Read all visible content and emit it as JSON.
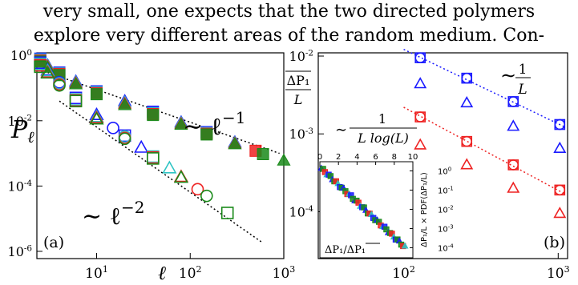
{
  "text": {
    "line1": "very small, one expects that the two directed polymers",
    "line2": "explore very different areas of the random medium. Con-"
  },
  "colors": {
    "blue": "#1a1aff",
    "red": "#ee2222",
    "green": "#1a8a1a",
    "cyan": "#2ec4c4",
    "black": "#000000"
  },
  "chart_data": [
    {
      "type": "scatter",
      "panel_label": "(a)",
      "ylabel": "P_ℓ",
      "xlabel": "ℓ",
      "x_scale": "log",
      "y_scale": "log",
      "xlim": [
        2.3,
        1000
      ],
      "ylim": [
        6e-07,
        1.2
      ],
      "x_ticks": [
        "10^1",
        "10^2",
        "10^3"
      ],
      "y_ticks": [
        "10^0",
        "10^-2",
        "10^-4",
        "10^-6"
      ],
      "annotations": [
        "∼ ℓ^-1",
        "∼ ℓ^-2"
      ],
      "series": [
        {
          "marker": "filled",
          "color": "blue",
          "x": [
            2.5,
            3,
            4,
            6,
            10,
            20,
            40,
            80,
            150,
            300
          ],
          "y": [
            0.8,
            0.5,
            0.3,
            0.16,
            0.08,
            0.04,
            0.019,
            0.009,
            0.0045,
            0.0022
          ]
        },
        {
          "marker": "filled",
          "color": "cyan",
          "x": [
            2.5,
            3,
            4,
            6,
            10,
            20,
            40,
            80,
            150,
            300
          ],
          "y": [
            0.75,
            0.48,
            0.28,
            0.15,
            0.075,
            0.036,
            0.017,
            0.0085,
            0.0042,
            0.0021
          ]
        },
        {
          "marker": "filled",
          "color": "red",
          "x": [
            2.5,
            3,
            4,
            6,
            10,
            20,
            40,
            80,
            150,
            300,
            500
          ],
          "y": [
            0.7,
            0.45,
            0.27,
            0.14,
            0.07,
            0.033,
            0.016,
            0.008,
            0.004,
            0.002,
            0.0012
          ]
        },
        {
          "marker": "filled",
          "color": "green",
          "x": [
            2.5,
            3,
            4,
            6,
            10,
            20,
            40,
            80,
            150,
            300,
            600,
            1000
          ],
          "y": [
            0.65,
            0.42,
            0.25,
            0.13,
            0.065,
            0.03,
            0.015,
            0.0075,
            0.0038,
            0.0019,
            0.00095,
            0.0006
          ]
        },
        {
          "marker": "open",
          "color": "blue",
          "x": [
            2.5,
            3,
            4,
            6,
            10,
            15,
            20,
            30
          ],
          "y": [
            0.6,
            0.35,
            0.15,
            0.05,
            0.015,
            0.006,
            0.0035,
            0.0015
          ]
        },
        {
          "marker": "open",
          "color": "cyan",
          "x": [
            2.5,
            3,
            4,
            6,
            10,
            20,
            40,
            60
          ],
          "y": [
            0.55,
            0.33,
            0.14,
            0.045,
            0.013,
            0.0033,
            0.0008,
            0.00035
          ]
        },
        {
          "marker": "open",
          "color": "red",
          "x": [
            2.5,
            3,
            4,
            6,
            10,
            20,
            40,
            80,
            120
          ],
          "y": [
            0.5,
            0.3,
            0.13,
            0.042,
            0.012,
            0.003,
            0.00075,
            0.00019,
            8e-05
          ]
        },
        {
          "marker": "open",
          "color": "green",
          "x": [
            2.5,
            3,
            4,
            6,
            10,
            20,
            40,
            80,
            150,
            250
          ],
          "y": [
            0.45,
            0.28,
            0.12,
            0.04,
            0.011,
            0.0028,
            0.0007,
            0.00018,
            5e-05,
            1.5e-05
          ]
        }
      ],
      "guides": [
        {
          "label": "∼ ℓ^-1",
          "x": [
            3,
            900
          ],
          "y": [
            0.3,
            0.001
          ]
        },
        {
          "label": "∼ ℓ^-2",
          "x": [
            4,
            600
          ],
          "y": [
            0.04,
            1.8e-06
          ]
        }
      ]
    },
    {
      "type": "scatter",
      "panel_label": "(b)",
      "ylabel": "ΔP1 / L",
      "x_scale": "log",
      "y_scale": "log",
      "xlim": [
        28,
        1150
      ],
      "ylim": [
        2.5e-05,
        0.011
      ],
      "x_ticks": [
        "10^2",
        "10^3"
      ],
      "y_ticks": [
        "10^-2",
        "10^-3",
        "10^-4"
      ],
      "annotations": [
        "∼ 1/L",
        "∼ 1/(L log(L))"
      ],
      "series": [
        {
          "marker": "circle",
          "color": "blue",
          "x": [
            128,
            256,
            512,
            1024
          ],
          "y": [
            0.0095,
            0.0052,
            0.0026,
            0.00132
          ]
        },
        {
          "marker": "square",
          "color": "blue",
          "x": [
            128,
            256,
            512,
            1024
          ],
          "y": [
            0.0095,
            0.0052,
            0.0026,
            0.00132
          ]
        },
        {
          "marker": "triangle",
          "color": "blue",
          "x": [
            128,
            256,
            512,
            1024
          ],
          "y": [
            0.0044,
            0.0025,
            0.00125,
            0.00065
          ]
        },
        {
          "marker": "circle",
          "color": "red",
          "x": [
            128,
            256,
            512,
            1024
          ],
          "y": [
            0.00165,
            0.0008,
            0.0004,
            0.00019
          ]
        },
        {
          "marker": "square",
          "color": "red",
          "x": [
            128,
            256,
            512,
            1024
          ],
          "y": [
            0.00165,
            0.0008,
            0.0004,
            0.00019
          ]
        },
        {
          "marker": "triangle",
          "color": "red",
          "x": [
            128,
            256,
            512,
            1024
          ],
          "y": [
            0.00072,
            0.0004,
            0.0002,
            9.5e-05
          ]
        }
      ],
      "fits": [
        {
          "color": "blue",
          "x": [
            100,
            1100
          ],
          "y": [
            0.0122,
            0.00123
          ]
        },
        {
          "color": "red",
          "x": [
            100,
            1100
          ],
          "y": [
            0.0022,
            0.00017
          ]
        }
      ],
      "inset": {
        "xlabel": "ΔP1 / ΔP1‾",
        "ylabel": "ΔP1/L × PDF(ΔP1/L)",
        "x_scale": "linear",
        "y_scale": "log",
        "xlim": [
          0,
          10
        ],
        "ylim": [
          3e-05,
          3
        ],
        "x_ticks": [
          "0",
          "2",
          "4",
          "6",
          "8",
          "10"
        ],
        "y_ticks": [
          "10^0",
          "10^-1",
          "10^-2",
          "10^-3",
          "10^-4"
        ]
      }
    }
  ]
}
